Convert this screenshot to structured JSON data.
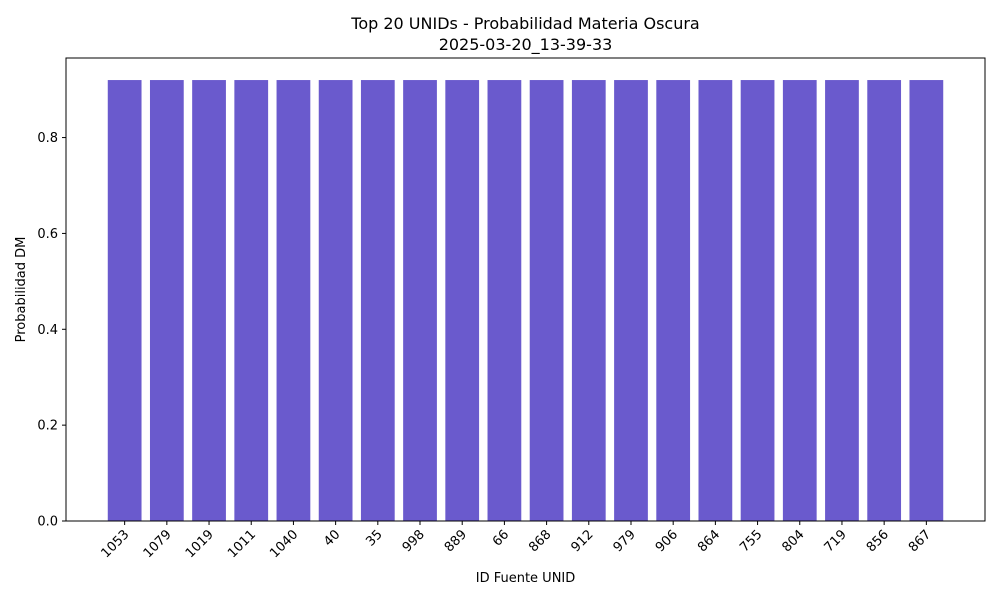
{
  "chart_data": {
    "type": "bar",
    "title": "Top 20 UNIDs - Probabilidad Materia Oscura",
    "subtitle": "2025-03-20_13-39-33",
    "xlabel": "ID Fuente UNID",
    "ylabel": "Probabilidad DM",
    "categories": [
      "1053",
      "1079",
      "1019",
      "1011",
      "1040",
      "40",
      "35",
      "998",
      "889",
      "66",
      "868",
      "912",
      "979",
      "906",
      "864",
      "755",
      "804",
      "719",
      "856",
      "867"
    ],
    "values": [
      0.92,
      0.92,
      0.92,
      0.92,
      0.92,
      0.92,
      0.92,
      0.92,
      0.92,
      0.92,
      0.92,
      0.92,
      0.92,
      0.92,
      0.92,
      0.92,
      0.92,
      0.92,
      0.92,
      0.92
    ],
    "ylim": [
      0,
      0.966
    ],
    "yticks": [
      "0.0",
      "0.2",
      "0.4",
      "0.6",
      "0.8"
    ],
    "ytick_values": [
      0,
      0.2,
      0.4,
      0.6,
      0.8
    ],
    "bar_color": "#6a5acd",
    "grid": false,
    "legend": "none"
  }
}
